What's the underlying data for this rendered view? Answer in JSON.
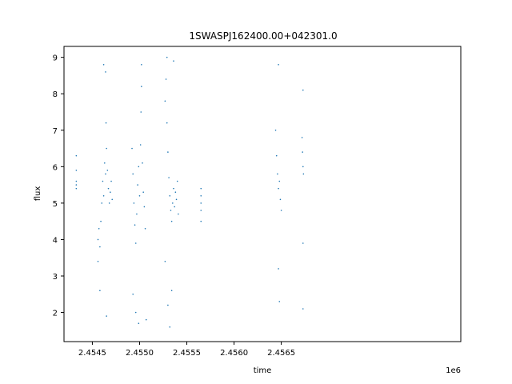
{
  "chart_data": {
    "type": "scatter",
    "title": "1SWASPJ162400.00+042301.0",
    "xlabel": "time",
    "ylabel": "flux",
    "offset_text": "1e6",
    "x_scale_factor": 1000000,
    "xlim": [
      2454200,
      2458400
    ],
    "ylim": [
      1.2,
      9.3
    ],
    "x_ticks": [
      2454500,
      2455000,
      2455500,
      2456000,
      2456500
    ],
    "x_tick_labels": [
      "2.4545",
      "2.4550",
      "2.4555",
      "2.4560",
      "2.4565"
    ],
    "y_ticks": [
      2,
      3,
      4,
      5,
      6,
      7,
      8,
      9
    ],
    "y_tick_labels": [
      "2",
      "3",
      "4",
      "5",
      "6",
      "7",
      "8",
      "9"
    ],
    "grid": false,
    "marker_color": "#1f77b4",
    "series": [
      {
        "points": [
          [
            2454330,
            6.3
          ],
          [
            2454330,
            5.9
          ],
          [
            2454330,
            5.6
          ],
          [
            2454330,
            5.5
          ],
          [
            2454330,
            5.4
          ],
          [
            2454560,
            4.0
          ],
          [
            2454570,
            4.3
          ],
          [
            2454580,
            3.8
          ],
          [
            2454590,
            4.5
          ],
          [
            2454600,
            5.0
          ],
          [
            2454610,
            5.6
          ],
          [
            2454620,
            5.2
          ],
          [
            2454630,
            6.1
          ],
          [
            2454640,
            5.8
          ],
          [
            2454645,
            7.2
          ],
          [
            2454650,
            6.5
          ],
          [
            2454660,
            5.9
          ],
          [
            2454670,
            5.4
          ],
          [
            2454680,
            5.0
          ],
          [
            2454690,
            5.3
          ],
          [
            2454700,
            5.6
          ],
          [
            2454710,
            5.1
          ],
          [
            2454560,
            3.4
          ],
          [
            2454580,
            2.6
          ],
          [
            2454620,
            8.8
          ],
          [
            2454640,
            8.6
          ],
          [
            2454650,
            1.9
          ],
          [
            2454920,
            6.5
          ],
          [
            2454930,
            5.8
          ],
          [
            2454940,
            5.0
          ],
          [
            2454950,
            4.4
          ],
          [
            2454960,
            3.9
          ],
          [
            2454970,
            4.7
          ],
          [
            2454980,
            5.5
          ],
          [
            2454990,
            6.0
          ],
          [
            2455000,
            5.2
          ],
          [
            2455010,
            6.6
          ],
          [
            2455015,
            7.5
          ],
          [
            2455020,
            8.2
          ],
          [
            2455030,
            6.1
          ],
          [
            2455040,
            5.3
          ],
          [
            2455050,
            4.9
          ],
          [
            2454930,
            2.5
          ],
          [
            2454960,
            2.0
          ],
          [
            2454990,
            1.7
          ],
          [
            2455020,
            8.8
          ],
          [
            2455060,
            4.3
          ],
          [
            2455070,
            1.8
          ],
          [
            2455270,
            7.8
          ],
          [
            2455280,
            8.4
          ],
          [
            2455290,
            7.2
          ],
          [
            2455300,
            6.4
          ],
          [
            2455310,
            5.7
          ],
          [
            2455320,
            5.2
          ],
          [
            2455330,
            4.8
          ],
          [
            2455340,
            4.5
          ],
          [
            2455350,
            5.0
          ],
          [
            2455360,
            5.4
          ],
          [
            2455370,
            4.9
          ],
          [
            2455380,
            5.3
          ],
          [
            2455390,
            5.1
          ],
          [
            2455400,
            5.6
          ],
          [
            2455410,
            4.7
          ],
          [
            2455270,
            3.4
          ],
          [
            2455290,
            9.0
          ],
          [
            2455300,
            2.2
          ],
          [
            2455320,
            1.6
          ],
          [
            2455340,
            2.6
          ],
          [
            2455360,
            8.9
          ],
          [
            2455650,
            5.4
          ],
          [
            2455650,
            5.2
          ],
          [
            2455650,
            5.0
          ],
          [
            2455650,
            4.8
          ],
          [
            2455650,
            4.5
          ],
          [
            2456440,
            7.0
          ],
          [
            2456450,
            6.3
          ],
          [
            2456460,
            5.8
          ],
          [
            2456470,
            5.4
          ],
          [
            2456480,
            5.6
          ],
          [
            2456490,
            5.1
          ],
          [
            2456500,
            4.8
          ],
          [
            2456470,
            3.2
          ],
          [
            2456480,
            2.3
          ],
          [
            2456470,
            8.8
          ],
          [
            2456720,
            6.8
          ],
          [
            2456725,
            6.4
          ],
          [
            2456730,
            6.0
          ],
          [
            2456735,
            5.8
          ],
          [
            2456730,
            8.1
          ],
          [
            2456730,
            3.9
          ],
          [
            2456730,
            2.1
          ]
        ]
      }
    ]
  }
}
